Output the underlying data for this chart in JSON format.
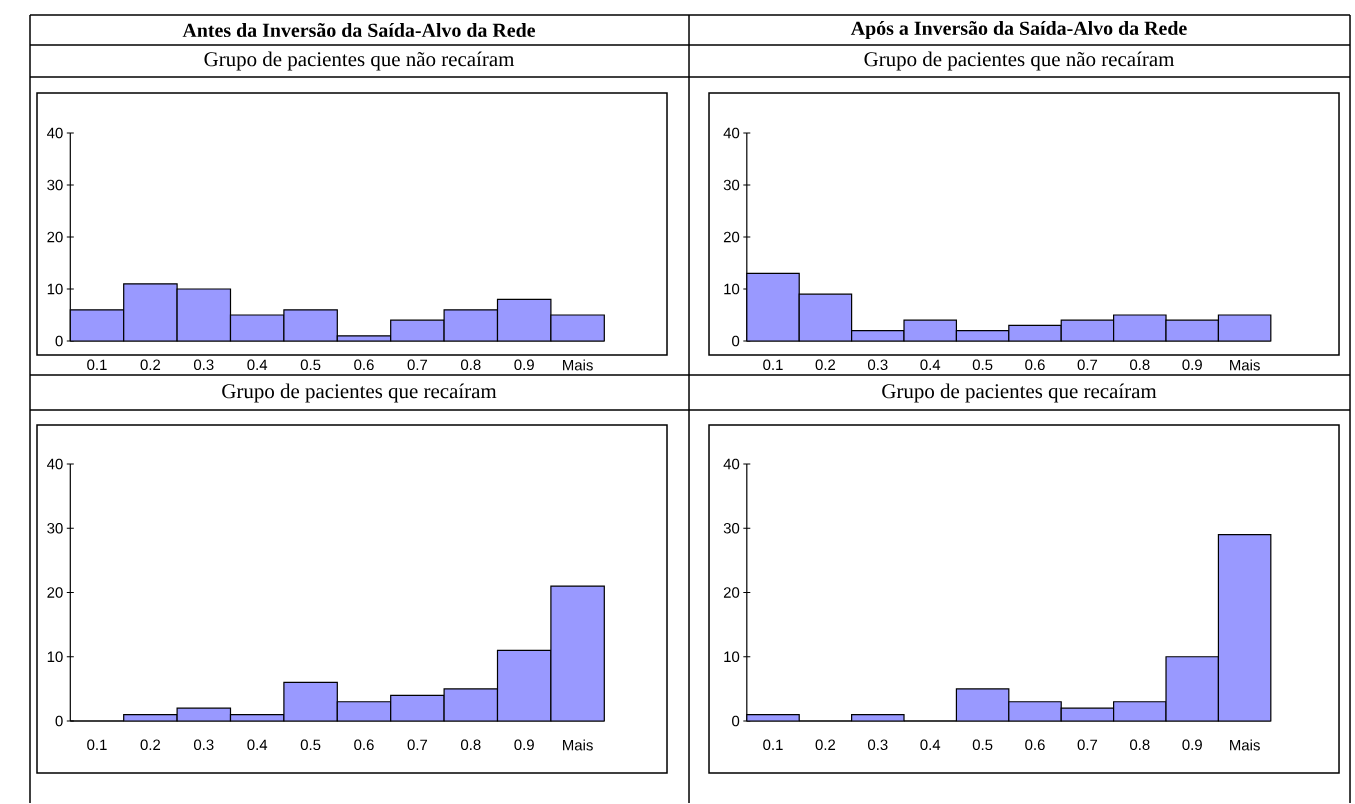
{
  "chart_data": [
    {
      "type": "bar",
      "title": "Antes da Inversão da Saída-Alvo da Rede",
      "subtitle": "Grupo de pacientes que não recaíram",
      "categories": [
        "0.1",
        "0.2",
        "0.3",
        "0.4",
        "0.5",
        "0.6",
        "0.7",
        "0.8",
        "0.9",
        "Mais"
      ],
      "values": [
        6,
        11,
        10,
        5,
        6,
        1,
        4,
        6,
        8,
        5
      ],
      "color": "#9999ff",
      "ylim": [
        0,
        40
      ],
      "yticks": [
        0,
        10,
        20,
        30,
        40
      ]
    },
    {
      "type": "bar",
      "title": "Após a Inversão da Saída-Alvo da Rede",
      "subtitle": "Grupo de pacientes que não recaíram",
      "categories": [
        "0.1",
        "0.2",
        "0.3",
        "0.4",
        "0.5",
        "0.6",
        "0.7",
        "0.8",
        "0.9",
        "Mais"
      ],
      "values": [
        13,
        9,
        2,
        4,
        2,
        3,
        4,
        5,
        4,
        5
      ],
      "color": "#9999ff",
      "ylim": [
        0,
        40
      ],
      "yticks": [
        0,
        10,
        20,
        30,
        40
      ]
    },
    {
      "type": "bar",
      "title": "Grupo de pacientes que recaíram",
      "categories": [
        "0.1",
        "0.2",
        "0.3",
        "0.4",
        "0.5",
        "0.6",
        "0.7",
        "0.8",
        "0.9",
        "Mais"
      ],
      "values": [
        0,
        1,
        2,
        1,
        6,
        3,
        4,
        5,
        11,
        21
      ],
      "color": "#9999ff",
      "ylim": [
        0,
        40
      ],
      "yticks": [
        0,
        10,
        20,
        30,
        40
      ]
    },
    {
      "type": "bar",
      "title": "Grupo de pacientes que recaíram",
      "categories": [
        "0.1",
        "0.2",
        "0.3",
        "0.4",
        "0.5",
        "0.6",
        "0.7",
        "0.8",
        "0.9",
        "Mais"
      ],
      "values": [
        1,
        0,
        1,
        0,
        5,
        3,
        2,
        3,
        10,
        29
      ],
      "color": "#9999ff",
      "ylim": [
        0,
        40
      ],
      "yticks": [
        0,
        10,
        20,
        30,
        40
      ]
    }
  ]
}
